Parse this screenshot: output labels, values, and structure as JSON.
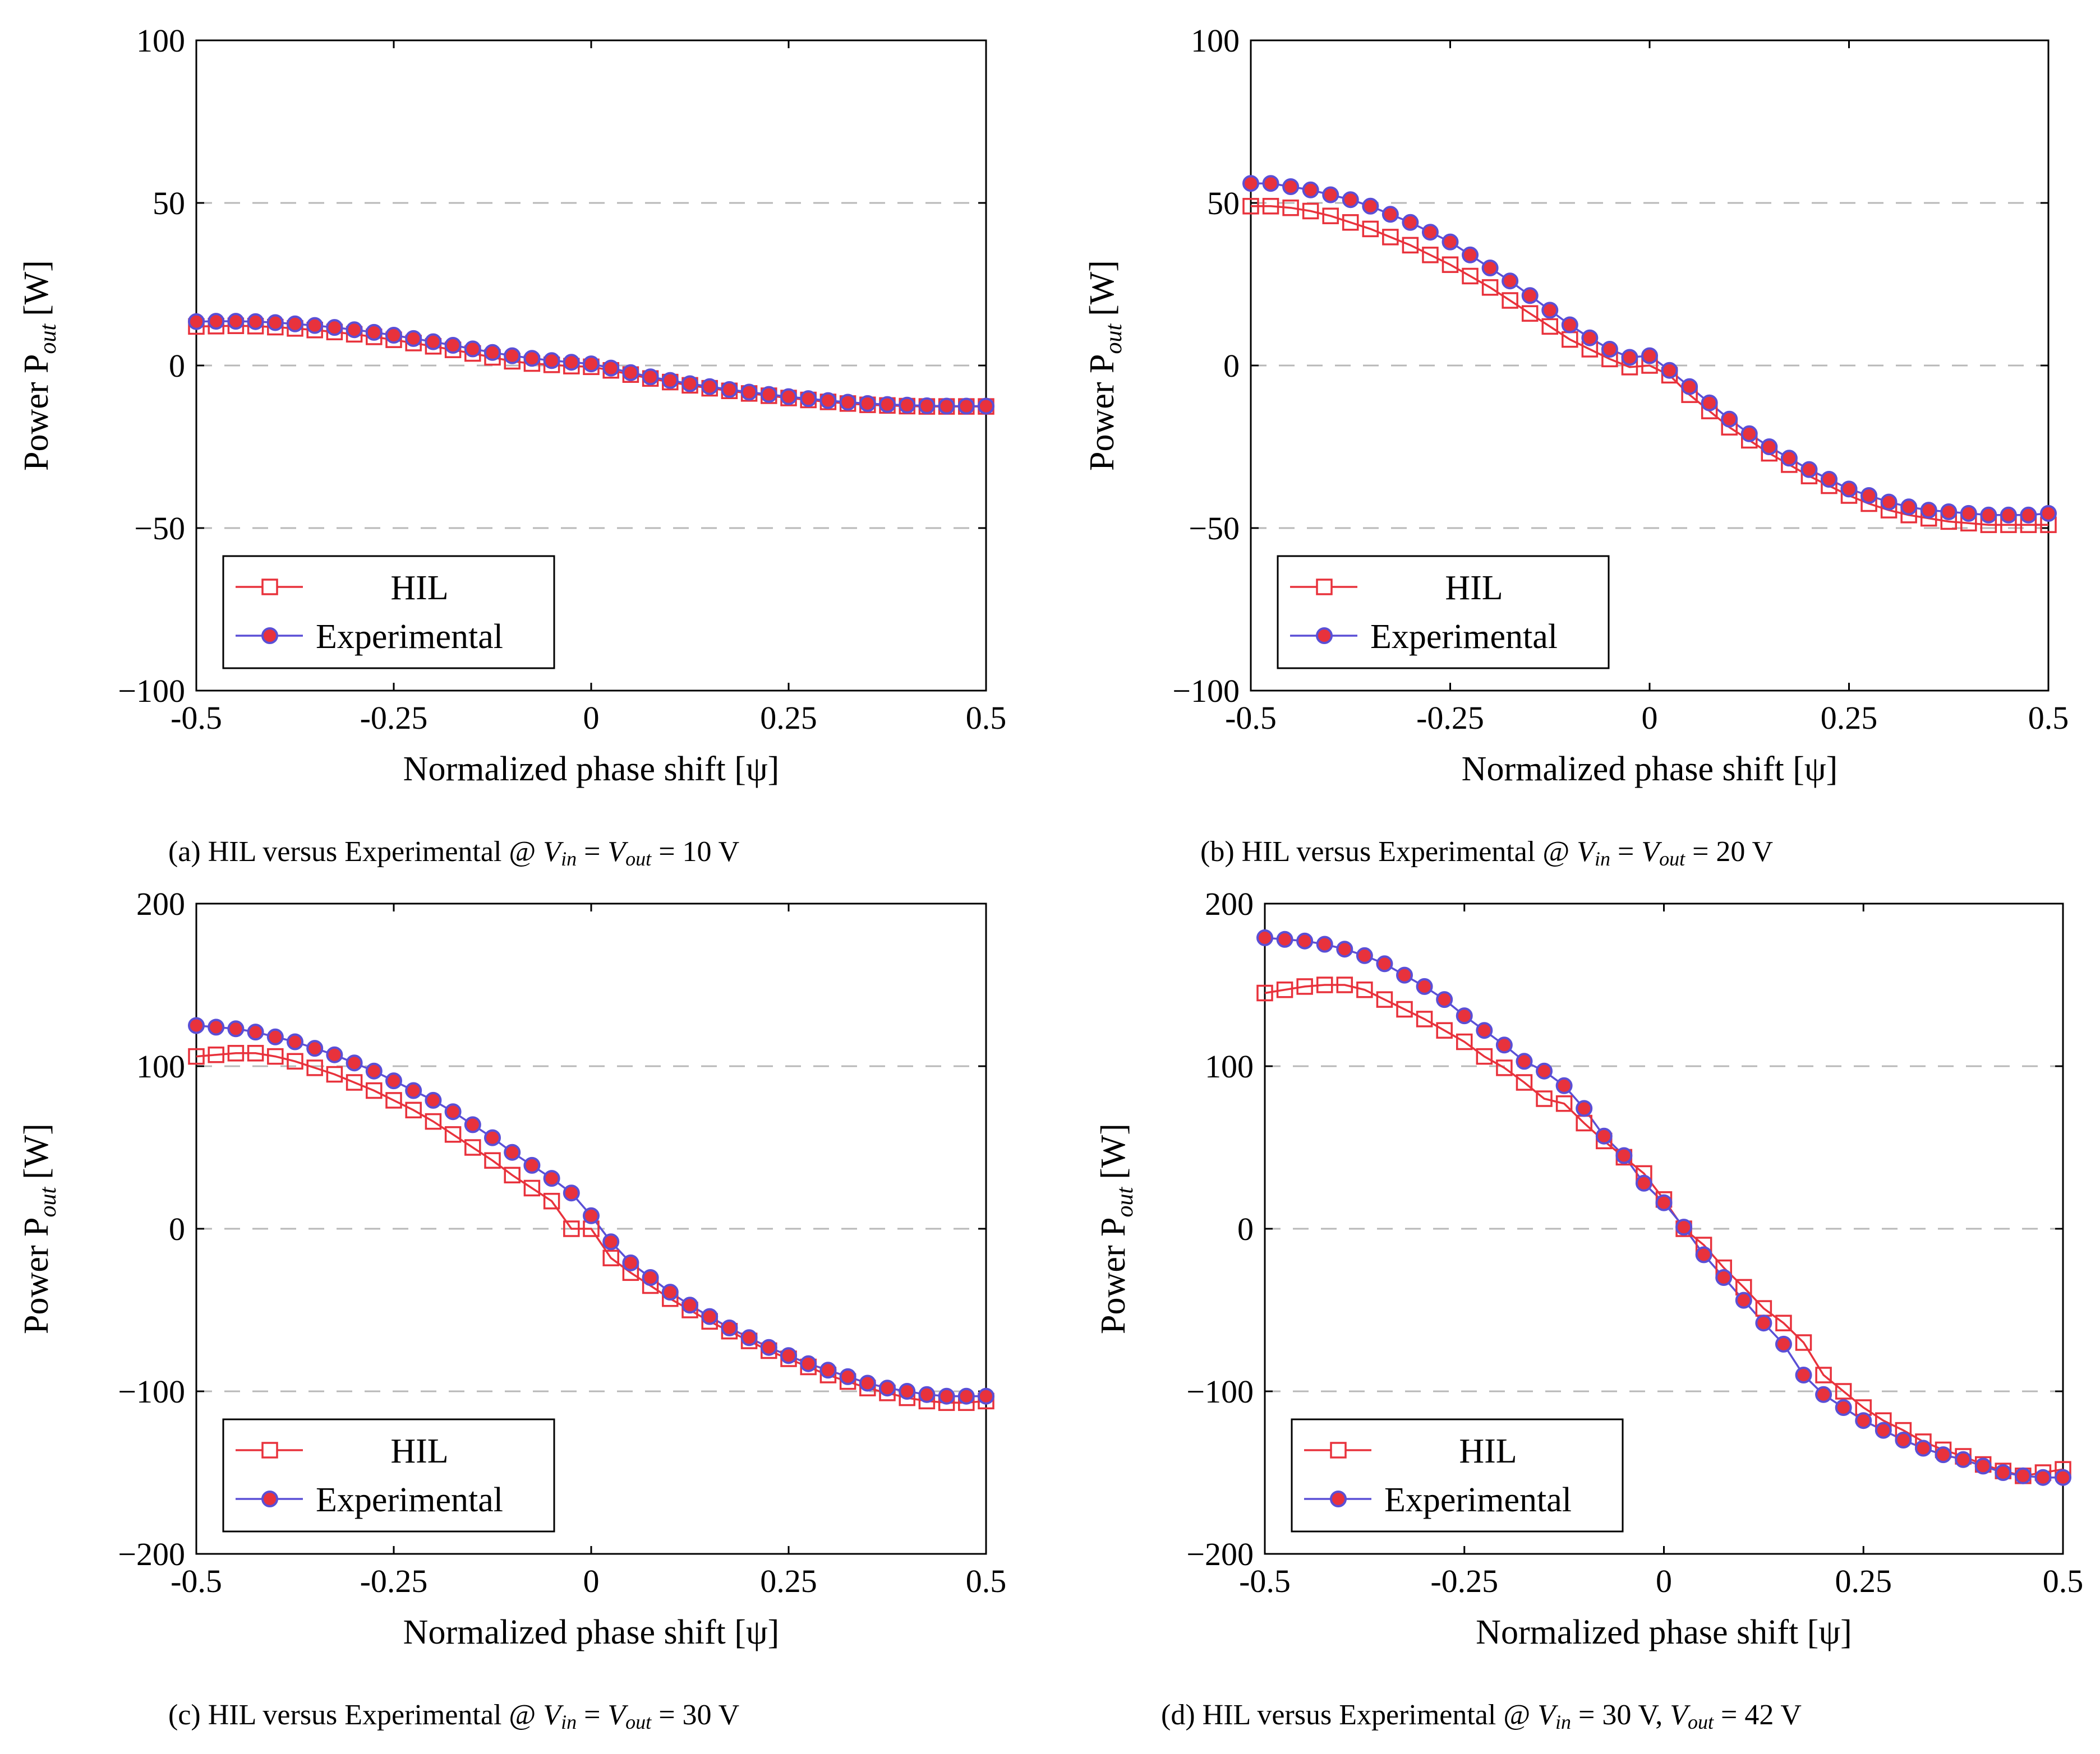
{
  "figure": {
    "panels": [
      {
        "label": "(a)",
        "caption": {
          "label": "(a)",
          "text_before": "HIL versus Experimental @",
          "v_in": "V",
          "v_in_sub": "in",
          "eq1": "=",
          "v_out": "V",
          "v_out_sub": "out",
          "eq2": "= 10 V",
          "tail": ""
        }
      },
      {
        "label": "(b)",
        "caption": {
          "label": "(b)",
          "text_before": "HIL versus Experimental @",
          "v_in": "V",
          "v_in_sub": "in",
          "eq1": "=",
          "v_out": "V",
          "v_out_sub": "out",
          "eq2": "= 20 V",
          "tail": ""
        }
      },
      {
        "label": "(c)",
        "caption": {
          "label": "(c)",
          "text_before": "HIL versus Experimental @",
          "v_in": "V",
          "v_in_sub": "in",
          "eq1": "=",
          "v_out": "V",
          "v_out_sub": "out",
          "eq2": "= 30 V",
          "tail": ""
        }
      },
      {
        "label": "(d)",
        "caption": {
          "label": "(d)",
          "text_before": "HIL versus Experimental @",
          "v_in": "V",
          "v_in_sub": "in",
          "eq1": "= 30 V,",
          "v_out": "V",
          "v_out_sub": "out",
          "eq2": "= 42 V",
          "tail": ""
        }
      }
    ]
  },
  "chart_data": [
    {
      "type": "line",
      "title": "",
      "xlabel": "Normalized phase shift [ψ]",
      "ylabel": "Power P",
      "ylabel_sub": "out",
      "ylabel_unit": "[W]",
      "xlim": [
        -0.5,
        0.5
      ],
      "ylim": [
        -100,
        100
      ],
      "xticks": [
        -0.5,
        -0.25,
        0,
        0.25,
        0.5
      ],
      "xtick_labels": [
        "-0.5",
        "-0.25",
        "0",
        "0.25",
        "0.5"
      ],
      "yticks": [
        -100,
        -50,
        0,
        50,
        100
      ],
      "ytick_labels": [
        "−100",
        "−50",
        "0",
        "50",
        "100"
      ],
      "grid": "horizontal dashed",
      "legend": {
        "placement": "bottom-left",
        "entries": [
          "HIL",
          "Experimental"
        ]
      },
      "x": [
        -0.5,
        -0.475,
        -0.45,
        -0.425,
        -0.4,
        -0.375,
        -0.35,
        -0.325,
        -0.3,
        -0.275,
        -0.25,
        -0.225,
        -0.2,
        -0.175,
        -0.15,
        -0.125,
        -0.1,
        -0.075,
        -0.05,
        -0.025,
        0,
        0.025,
        0.05,
        0.075,
        0.1,
        0.125,
        0.15,
        0.175,
        0.2,
        0.225,
        0.25,
        0.275,
        0.3,
        0.325,
        0.35,
        0.375,
        0.4,
        0.425,
        0.45,
        0.475,
        0.5
      ],
      "series": [
        {
          "name": "HIL",
          "marker": "square-open",
          "color": "#e8323c",
          "values": [
            12.0,
            12.1,
            12.2,
            12.1,
            11.8,
            11.4,
            10.9,
            10.3,
            9.6,
            8.8,
            7.9,
            6.9,
            5.9,
            4.8,
            3.7,
            2.5,
            1.3,
            0.6,
            0.2,
            -0.2,
            -0.4,
            -1.5,
            -2.8,
            -4.0,
            -5.1,
            -6.1,
            -7.0,
            -7.8,
            -8.6,
            -9.3,
            -10.0,
            -10.6,
            -11.2,
            -11.7,
            -12.1,
            -12.3,
            -12.5,
            -12.6,
            -12.6,
            -12.6,
            -12.6
          ]
        },
        {
          "name": "Experimental",
          "marker": "circle-filled",
          "color": "#5a4fd6",
          "values": [
            13.5,
            13.6,
            13.6,
            13.5,
            13.2,
            12.8,
            12.3,
            11.7,
            11.0,
            10.2,
            9.3,
            8.3,
            7.3,
            6.2,
            5.1,
            4.0,
            3.0,
            2.2,
            1.5,
            1.0,
            0.5,
            -0.8,
            -2.2,
            -3.5,
            -4.6,
            -5.6,
            -6.5,
            -7.4,
            -8.2,
            -8.9,
            -9.6,
            -10.2,
            -10.8,
            -11.3,
            -11.7,
            -12.0,
            -12.2,
            -12.4,
            -12.5,
            -12.5,
            -12.5
          ]
        }
      ]
    },
    {
      "type": "line",
      "title": "",
      "xlabel": "Normalized phase shift [ψ]",
      "ylabel": "Power P",
      "ylabel_sub": "out",
      "ylabel_unit": "[W]",
      "xlim": [
        -0.5,
        0.5
      ],
      "ylim": [
        -100,
        100
      ],
      "xticks": [
        -0.5,
        -0.25,
        0,
        0.25,
        0.5
      ],
      "xtick_labels": [
        "-0.5",
        "-0.25",
        "0",
        "0.25",
        "0.5"
      ],
      "yticks": [
        -100,
        -50,
        0,
        50,
        100
      ],
      "ytick_labels": [
        "−100",
        "−50",
        "0",
        "50",
        "100"
      ],
      "grid": "horizontal dashed",
      "legend": {
        "placement": "bottom-left",
        "entries": [
          "HIL",
          "Experimental"
        ]
      },
      "x": [
        -0.5,
        -0.475,
        -0.45,
        -0.425,
        -0.4,
        -0.375,
        -0.35,
        -0.325,
        -0.3,
        -0.275,
        -0.25,
        -0.225,
        -0.2,
        -0.175,
        -0.15,
        -0.125,
        -0.1,
        -0.075,
        -0.05,
        -0.025,
        0,
        0.025,
        0.05,
        0.075,
        0.1,
        0.125,
        0.15,
        0.175,
        0.2,
        0.225,
        0.25,
        0.275,
        0.3,
        0.325,
        0.35,
        0.375,
        0.4,
        0.425,
        0.45,
        0.475,
        0.5
      ],
      "series": [
        {
          "name": "HIL",
          "marker": "square-open",
          "color": "#e8323c",
          "values": [
            49,
            49,
            48.5,
            47.5,
            46,
            44,
            42,
            39.5,
            37,
            34,
            31,
            27.5,
            24,
            20,
            16,
            12,
            8,
            5,
            2,
            -0.5,
            0,
            -3,
            -9,
            -14,
            -19,
            -23,
            -27,
            -30.5,
            -34,
            -37,
            -40,
            -42.5,
            -44.5,
            -46,
            -47,
            -48,
            -48.5,
            -49,
            -49,
            -49,
            -49
          ]
        },
        {
          "name": "Experimental",
          "marker": "circle-filled",
          "color": "#5a4fd6",
          "values": [
            56,
            56,
            55,
            54,
            52.5,
            51,
            49,
            46.5,
            44,
            41,
            38,
            34,
            30,
            26,
            21.5,
            17,
            12.5,
            8.5,
            5,
            2.5,
            3,
            -1.5,
            -6.5,
            -11.5,
            -16.5,
            -21,
            -25,
            -28.5,
            -32,
            -35,
            -38,
            -40,
            -42,
            -43.5,
            -44.5,
            -45,
            -45.5,
            -46,
            -46,
            -46,
            -45.5
          ]
        }
      ]
    },
    {
      "type": "line",
      "title": "",
      "xlabel": "Normalized phase shift [ψ]",
      "ylabel": "Power P",
      "ylabel_sub": "out",
      "ylabel_unit": "[W]",
      "xlim": [
        -0.5,
        0.5
      ],
      "ylim": [
        -200,
        200
      ],
      "xticks": [
        -0.5,
        -0.25,
        0,
        0.25,
        0.5
      ],
      "xtick_labels": [
        "-0.5",
        "-0.25",
        "0",
        "0.25",
        "0.5"
      ],
      "yticks": [
        -200,
        -100,
        0,
        100,
        200
      ],
      "ytick_labels": [
        "−200",
        "−100",
        "0",
        "100",
        "200"
      ],
      "grid": "horizontal dashed",
      "legend": {
        "placement": "bottom-left",
        "entries": [
          "HIL",
          "Experimental"
        ]
      },
      "x": [
        -0.5,
        -0.475,
        -0.45,
        -0.425,
        -0.4,
        -0.375,
        -0.35,
        -0.325,
        -0.3,
        -0.275,
        -0.25,
        -0.225,
        -0.2,
        -0.175,
        -0.15,
        -0.125,
        -0.1,
        -0.075,
        -0.05,
        -0.025,
        0,
        0.025,
        0.05,
        0.075,
        0.1,
        0.125,
        0.15,
        0.175,
        0.2,
        0.225,
        0.25,
        0.275,
        0.3,
        0.325,
        0.35,
        0.375,
        0.4,
        0.425,
        0.45,
        0.475,
        0.5
      ],
      "series": [
        {
          "name": "HIL",
          "marker": "square-open",
          "color": "#e8323c",
          "values": [
            106,
            107,
            108,
            108,
            106,
            103,
            99,
            95,
            90,
            85,
            79,
            73,
            66,
            58,
            50,
            42,
            33,
            25,
            17,
            0,
            0,
            -18,
            -27,
            -35,
            -43,
            -50,
            -57,
            -63,
            -69,
            -75,
            -80,
            -85,
            -90,
            -94,
            -98,
            -101,
            -104,
            -106,
            -107,
            -107,
            -106
          ]
        },
        {
          "name": "Experimental",
          "marker": "circle-filled",
          "color": "#5a4fd6",
          "values": [
            125,
            124,
            123,
            121,
            118,
            115,
            111,
            107,
            102,
            97,
            91,
            85,
            79,
            72,
            64,
            56,
            47,
            39,
            31,
            22,
            8,
            -8,
            -21,
            -30,
            -39,
            -47,
            -54,
            -61,
            -67,
            -73,
            -78,
            -83,
            -87,
            -91,
            -95,
            -98,
            -100,
            -102,
            -103,
            -103,
            -103
          ]
        }
      ]
    },
    {
      "type": "line",
      "title": "",
      "xlabel": "Normalized phase shift [ψ]",
      "ylabel": "Power P",
      "ylabel_sub": "out",
      "ylabel_unit": "[W]",
      "xlim": [
        -0.5,
        0.5
      ],
      "ylim": [
        -200,
        200
      ],
      "xticks": [
        -0.5,
        -0.25,
        0,
        0.25,
        0.5
      ],
      "xtick_labels": [
        "-0.5",
        "-0.25",
        "0",
        "0.25",
        "0.5"
      ],
      "yticks": [
        -200,
        -100,
        0,
        100,
        200
      ],
      "ytick_labels": [
        "−200",
        "−100",
        "0",
        "100",
        "200"
      ],
      "grid": "horizontal dashed",
      "legend": {
        "placement": "bottom-left",
        "entries": [
          "HIL",
          "Experimental"
        ]
      },
      "x": [
        -0.5,
        -0.475,
        -0.45,
        -0.425,
        -0.4,
        -0.375,
        -0.35,
        -0.325,
        -0.3,
        -0.275,
        -0.25,
        -0.225,
        -0.2,
        -0.175,
        -0.15,
        -0.125,
        -0.1,
        -0.075,
        -0.05,
        -0.025,
        0,
        0.025,
        0.05,
        0.075,
        0.1,
        0.125,
        0.15,
        0.175,
        0.2,
        0.225,
        0.25,
        0.275,
        0.3,
        0.325,
        0.35,
        0.375,
        0.4,
        0.425,
        0.45,
        0.475,
        0.5
      ],
      "series": [
        {
          "name": "HIL",
          "marker": "square-open",
          "color": "#e8323c",
          "values": [
            145,
            147,
            149,
            150,
            150,
            147,
            141,
            135,
            129,
            122,
            115,
            106,
            99,
            90,
            80,
            77,
            65,
            54,
            44,
            34,
            18,
            0,
            -10,
            -24,
            -36,
            -49,
            -58,
            -70,
            -90,
            -100,
            -110,
            -118,
            -124,
            -131,
            -136,
            -140,
            -145,
            -149,
            -152,
            -150,
            -148
          ]
        },
        {
          "name": "Experimental",
          "marker": "circle-filled",
          "color": "#5a4fd6",
          "values": [
            179,
            178,
            177,
            175,
            172,
            168,
            163,
            156,
            149,
            141,
            131,
            122,
            113,
            103,
            97,
            88,
            74,
            57,
            45,
            28,
            16,
            1,
            -16,
            -30,
            -44,
            -58,
            -71,
            -90,
            -102,
            -110,
            -118,
            -124,
            -130,
            -135,
            -139,
            -142,
            -146,
            -150,
            -152,
            -153,
            -153
          ]
        }
      ]
    }
  ]
}
